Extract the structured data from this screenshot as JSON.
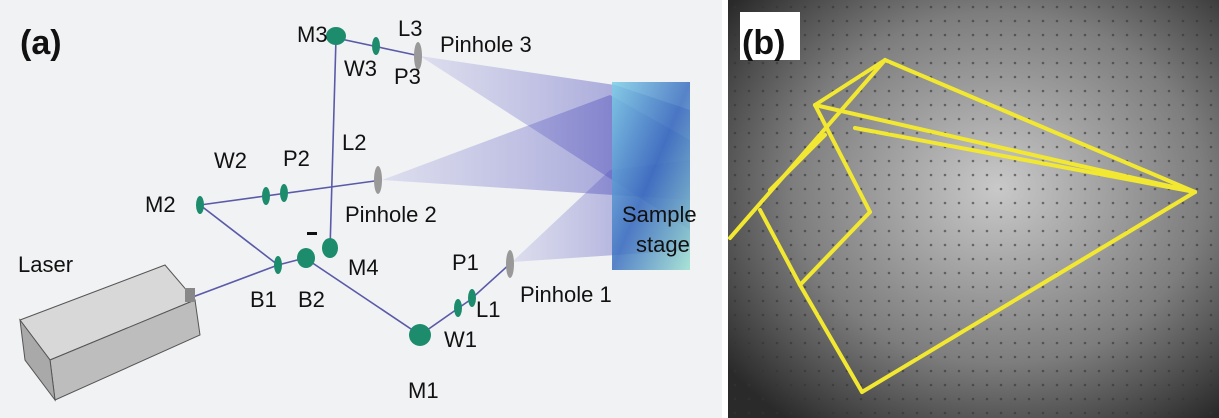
{
  "panel_a": {
    "label": "(a)",
    "labels": [
      "M3",
      "L3",
      "Pinhole 3",
      "W3",
      "P3",
      "W2",
      "P2",
      "L2",
      "M2",
      "Pinhole 2",
      "Sample",
      "stage",
      "Laser",
      "B1",
      "B2",
      "M4",
      "P1",
      "L1",
      "Pinhole 1",
      "W1",
      "M1"
    ]
  },
  "panel_b": {
    "label": "(b)"
  }
}
